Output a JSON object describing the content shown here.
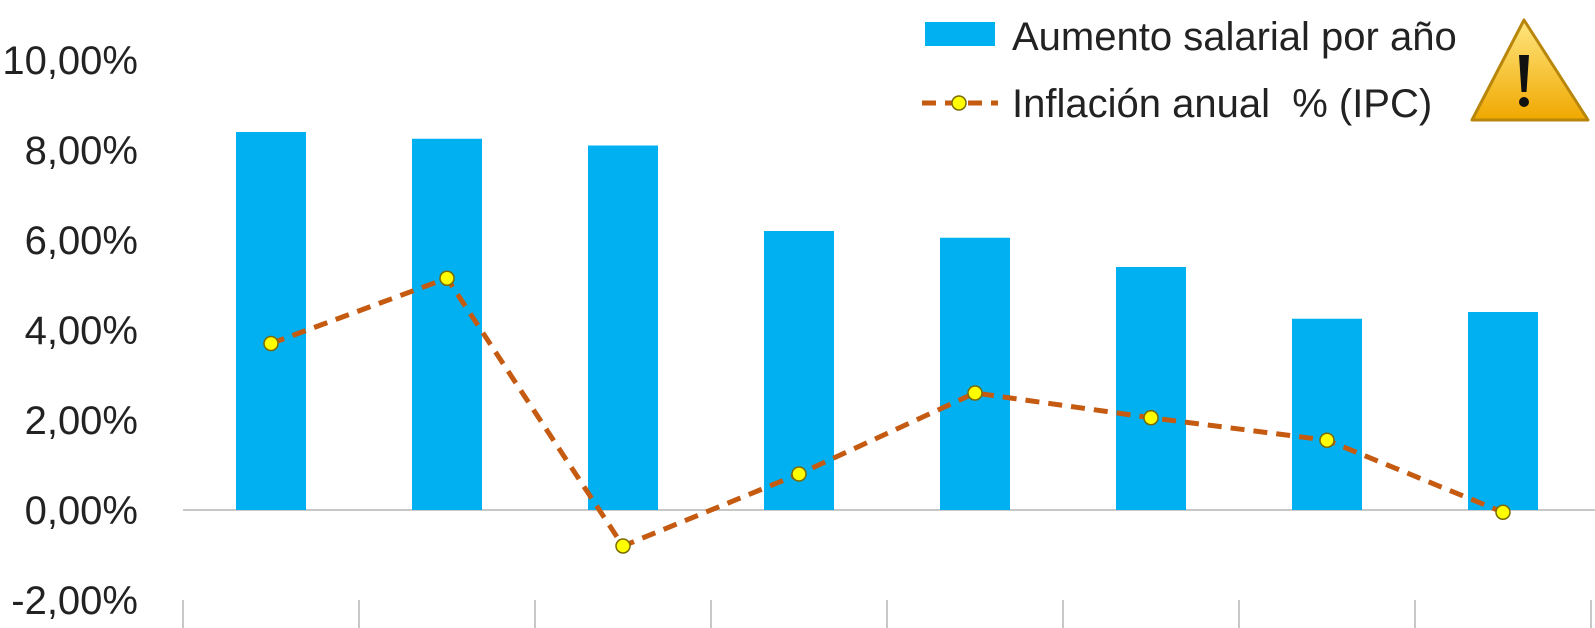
{
  "chart_data": {
    "type": "bar",
    "ylim": [
      -2,
      10
    ],
    "y_ticks": [
      "10,00%",
      "8,00%",
      "6,00%",
      "4,00%",
      "2,00%",
      "0,00%",
      "-2,00%"
    ],
    "grid": false,
    "legend_position": "top-right",
    "series": [
      {
        "name": "Aumento salarial por año",
        "type": "bar",
        "color": "#00B0F0",
        "values": [
          8.4,
          8.25,
          8.1,
          6.2,
          6.05,
          5.4,
          4.25,
          4.4
        ]
      },
      {
        "name": "Inflación anual  % (IPC)",
        "type": "line",
        "line_color": "#C55A11",
        "marker_color": "#FFFF00",
        "line_style": "dashed",
        "values": [
          3.7,
          5.15,
          -0.8,
          0.8,
          2.6,
          2.05,
          1.55,
          -0.05
        ]
      }
    ]
  },
  "decor": {
    "warning_icon": "warning-triangle-icon"
  }
}
